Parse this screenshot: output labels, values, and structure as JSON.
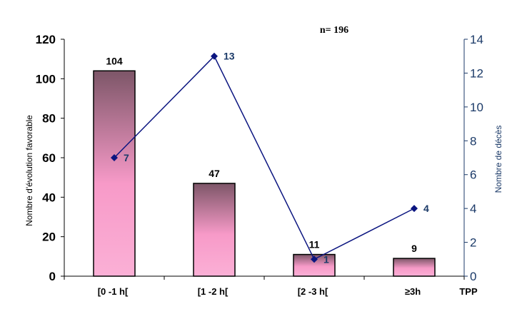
{
  "chart_data": {
    "type": "bar",
    "annotation": "n= 196",
    "categories": [
      "[0 -1 h[",
      "[1 -2 h[",
      "[2 -3 h[",
      "≥3h"
    ],
    "xlabel": "TPP",
    "ylabel": "Nombre d'évolution favorable",
    "y2label": "Nombre de décès",
    "ylim": [
      0,
      120
    ],
    "y2lim": [
      0,
      14
    ],
    "yticks": [
      0,
      20,
      40,
      60,
      80,
      100,
      120
    ],
    "y2ticks": [
      0,
      2,
      4,
      6,
      8,
      10,
      12,
      14
    ],
    "grid": false,
    "series": [
      {
        "type": "bar",
        "axis": "left",
        "values": [
          104,
          47,
          11,
          9
        ],
        "color": "#f19bc8"
      },
      {
        "type": "line",
        "axis": "right",
        "values": [
          7,
          13,
          1,
          4
        ],
        "color": "#0b1580"
      }
    ]
  }
}
